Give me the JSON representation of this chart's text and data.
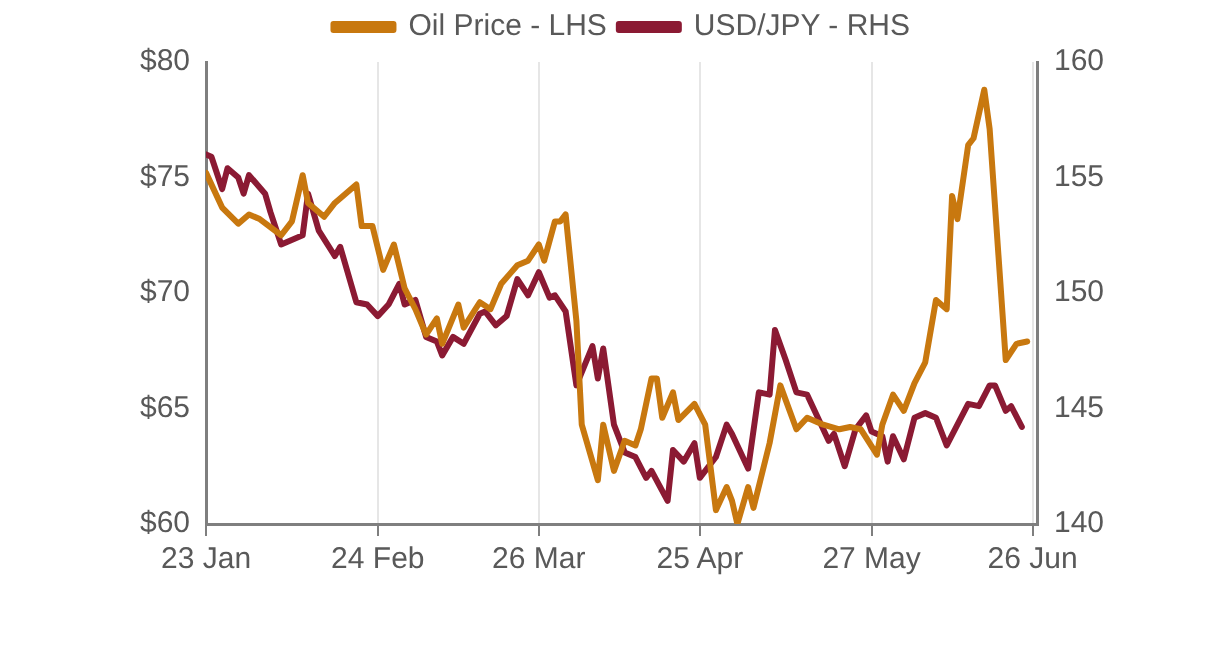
{
  "chart_data": {
    "type": "line",
    "series": [
      {
        "name": "Oil Price - LHS",
        "color": "#c8780f",
        "axis": "y",
        "x": [
          "--01-23",
          "--01-26",
          "--01-29",
          "--01-31",
          "--02-02",
          "--02-06",
          "--02-08",
          "--02-10",
          "--02-11",
          "--02-14",
          "--02-16",
          "--02-20",
          "--02-21",
          "--02-23",
          "--02-25",
          "--02-27",
          "--03-01",
          "--03-03",
          "--03-05",
          "--03-07",
          "--03-08",
          "--03-11",
          "--03-12",
          "--03-15",
          "--03-17",
          "--03-19",
          "--03-22",
          "--03-24",
          "--03-26",
          "--03-27",
          "--03-29",
          "--03-30",
          "--03-31",
          "--04-02",
          "--04-03",
          "--04-06",
          "--04-07",
          "--04-09",
          "--04-11",
          "--04-13",
          "--04-14",
          "--04-16",
          "--04-17",
          "--04-18",
          "--04-20",
          "--04-21",
          "--04-24",
          "--04-26",
          "--04-28",
          "--04-30",
          "--05-01",
          "--05-02",
          "--05-04",
          "--05-05",
          "--05-08",
          "--05-10",
          "--05-13",
          "--05-15",
          "--05-18",
          "--05-21",
          "--05-23",
          "--05-25",
          "--05-28",
          "--05-29",
          "--05-31",
          "--06-02",
          "--06-04",
          "--06-06",
          "--06-08",
          "--06-10",
          "--06-11",
          "--06-12",
          "--06-14",
          "--06-15",
          "--06-17",
          "--06-18",
          "--06-21",
          "--06-23",
          "--06-25"
        ],
        "values": [
          75.2,
          73.7,
          73.0,
          73.4,
          73.2,
          72.5,
          73.1,
          75.1,
          73.9,
          73.3,
          73.9,
          74.7,
          72.9,
          72.9,
          71.0,
          72.1,
          70.2,
          69.3,
          68.2,
          68.9,
          67.8,
          69.5,
          68.5,
          69.6,
          69.3,
          70.4,
          71.2,
          71.4,
          72.1,
          71.4,
          73.1,
          73.1,
          73.4,
          68.8,
          64.3,
          61.9,
          64.3,
          62.3,
          63.6,
          63.4,
          64.1,
          66.3,
          66.3,
          64.6,
          65.7,
          64.5,
          65.2,
          64.3,
          60.6,
          61.6,
          61.0,
          60.0,
          61.6,
          60.7,
          63.5,
          66.0,
          64.1,
          64.6,
          64.3,
          64.1,
          64.2,
          64.1,
          63.0,
          64.3,
          65.6,
          64.9,
          66.1,
          67.0,
          69.7,
          69.3,
          74.2,
          73.2,
          76.4,
          76.7,
          78.8,
          77.1,
          67.1,
          67.8,
          67.9
        ]
      },
      {
        "name": "USD/JPY - RHS",
        "color": "#8b1a33",
        "axis": "y2",
        "x": [
          "--01-23",
          "--01-24",
          "--01-26",
          "--01-27",
          "--01-29",
          "--01-30",
          "--01-31",
          "--02-03",
          "--02-04",
          "--02-06",
          "--02-10",
          "--02-11",
          "--02-13",
          "--02-16",
          "--02-17",
          "--02-20",
          "--02-22",
          "--02-24",
          "--02-26",
          "--02-28",
          "--03-01",
          "--03-03",
          "--03-05",
          "--03-07",
          "--03-08",
          "--03-10",
          "--03-12",
          "--03-15",
          "--03-16",
          "--03-18",
          "--03-20",
          "--03-22",
          "--03-24",
          "--03-26",
          "--03-28",
          "--03-29",
          "--03-31",
          "--04-02",
          "--04-05",
          "--04-06",
          "--04-07",
          "--04-09",
          "--04-11",
          "--04-13",
          "--04-15",
          "--04-16",
          "--04-19",
          "--04-20",
          "--04-22",
          "--04-24",
          "--04-25",
          "--04-28",
          "--04-30",
          "--05-01",
          "--05-04",
          "--05-06",
          "--05-08",
          "--05-09",
          "--05-11",
          "--05-13",
          "--05-15",
          "--05-17",
          "--05-19",
          "--05-20",
          "--05-22",
          "--05-24",
          "--05-26",
          "--05-27",
          "--05-29",
          "--05-30",
          "--05-31",
          "--06-02",
          "--06-04",
          "--06-06",
          "--06-08",
          "--06-10",
          "--06-12",
          "--06-14",
          "--06-16",
          "--06-18",
          "--06-19",
          "--06-21",
          "--06-22",
          "--06-24"
        ],
        "values": [
          156.0,
          155.9,
          154.5,
          155.4,
          155.0,
          154.3,
          155.1,
          154.3,
          153.5,
          152.1,
          152.5,
          154.3,
          152.7,
          151.6,
          152.0,
          149.6,
          149.5,
          149.0,
          149.5,
          150.4,
          149.5,
          149.7,
          148.1,
          147.9,
          147.3,
          148.1,
          147.8,
          149.1,
          149.2,
          148.6,
          149.0,
          150.6,
          149.9,
          150.9,
          149.8,
          149.9,
          149.2,
          146.0,
          147.7,
          146.3,
          147.6,
          144.3,
          143.1,
          142.9,
          142.0,
          142.3,
          141.0,
          143.2,
          142.7,
          143.5,
          142.0,
          142.9,
          144.3,
          143.9,
          142.4,
          145.7,
          145.6,
          148.4,
          147.1,
          145.7,
          145.6,
          144.6,
          143.6,
          143.9,
          142.5,
          144.1,
          144.7,
          144.0,
          143.8,
          142.7,
          143.8,
          142.8,
          144.6,
          144.8,
          144.6,
          143.4,
          144.3,
          145.2,
          145.1,
          146.0,
          146.0,
          144.9,
          145.1,
          144.2
        ]
      }
    ],
    "xlim": [
      "--01-23",
      "--06-27"
    ],
    "xticks": [
      {
        "value": "--01-23",
        "label": "23 Jan"
      },
      {
        "value": "--02-24",
        "label": "24 Feb"
      },
      {
        "value": "--03-26",
        "label": "26 Mar"
      },
      {
        "value": "--04-25",
        "label": "25 Apr"
      },
      {
        "value": "--05-27",
        "label": "27 May"
      },
      {
        "value": "--06-26",
        "label": "26 Jun"
      }
    ],
    "ylim": [
      60,
      80
    ],
    "yticks": [
      {
        "value": 60,
        "label": "$60"
      },
      {
        "value": 65,
        "label": "$65"
      },
      {
        "value": 70,
        "label": "$70"
      },
      {
        "value": 75,
        "label": "$75"
      },
      {
        "value": 80,
        "label": "$80"
      }
    ],
    "y2lim": [
      140,
      160
    ],
    "y2ticks": [
      140,
      145,
      150,
      155,
      160
    ],
    "grid": "x",
    "legend": "top",
    "marker": "none",
    "line_style": "solid"
  }
}
